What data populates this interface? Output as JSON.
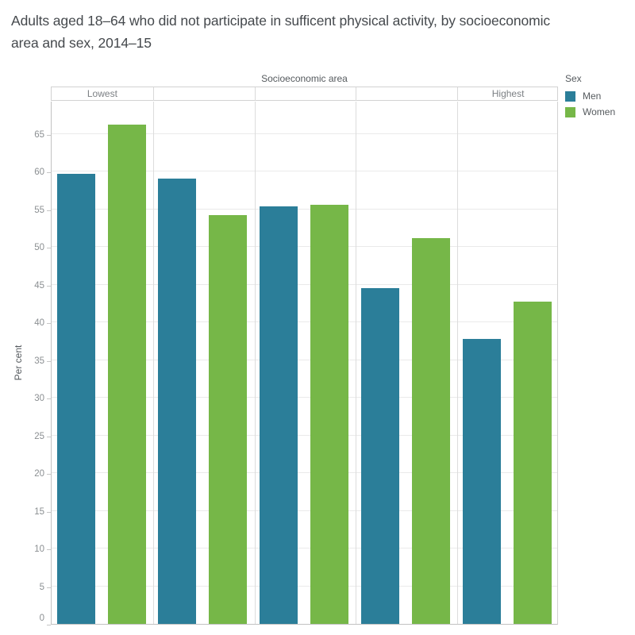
{
  "title": "Adults aged 18–64 who did not participate in sufficent physical activity, by socioeconomic area and sex, 2014–15",
  "column_header": {
    "label": "Socioeconomic area",
    "categories": [
      "Lowest",
      "",
      "",
      "",
      "Highest"
    ]
  },
  "legend": {
    "title": "Sex",
    "items": [
      {
        "label": "Men",
        "color": "#2b7e99"
      },
      {
        "label": "Women",
        "color": "#76b748"
      }
    ]
  },
  "axes": {
    "y_label": "Per cent",
    "y_ticks": [
      0,
      5,
      10,
      15,
      20,
      25,
      30,
      35,
      40,
      45,
      50,
      55,
      60,
      65
    ]
  },
  "chart_data": {
    "type": "bar",
    "title": "Adults aged 18–64 who did not participate in sufficent physical activity, by socioeconomic area and sex, 2014–15",
    "categories": [
      "Lowest",
      "",
      "",
      "",
      "Highest"
    ],
    "series": [
      {
        "name": "Men",
        "color": "#2b7e99",
        "values": [
          59.7,
          59.0,
          55.4,
          44.5,
          37.8
        ]
      },
      {
        "name": "Women",
        "color": "#76b748",
        "values": [
          66.2,
          54.2,
          55.6,
          51.2,
          42.7
        ]
      }
    ],
    "xlabel": "Socioeconomic area",
    "ylabel": "Per cent",
    "ylim": [
      0,
      69.4
    ],
    "ytick_step": 5,
    "grid": true,
    "legend_position": "top-right"
  }
}
